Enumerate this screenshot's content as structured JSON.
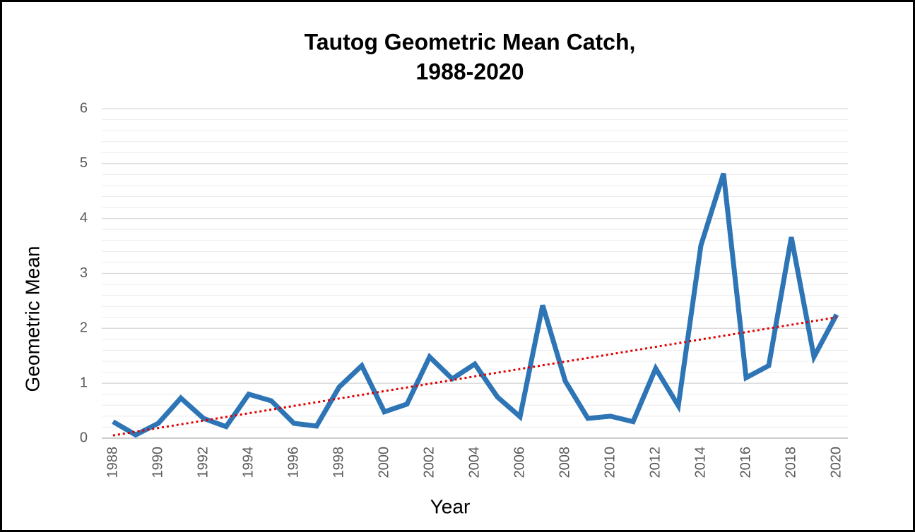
{
  "chart_data": {
    "type": "line",
    "title": [
      "Tautog Geometric Mean Catch,",
      "1988-2020"
    ],
    "x_label": "Year",
    "y_label": "Geometric Mean",
    "x": [
      1988,
      1989,
      1990,
      1991,
      1992,
      1993,
      1994,
      1995,
      1996,
      1997,
      1998,
      1999,
      2000,
      2001,
      2002,
      2003,
      2004,
      2005,
      2006,
      2007,
      2008,
      2009,
      2010,
      2011,
      2012,
      2013,
      2014,
      2015,
      2016,
      2017,
      2018,
      2019,
      2020
    ],
    "series": [
      {
        "color": "#2e75b6",
        "values": [
          0.3,
          0.06,
          0.27,
          0.73,
          0.36,
          0.21,
          0.8,
          0.68,
          0.27,
          0.22,
          0.93,
          1.32,
          0.48,
          0.62,
          1.48,
          1.08,
          1.35,
          0.75,
          0.39,
          2.42,
          1.04,
          0.36,
          0.4,
          0.3,
          1.27,
          0.59,
          3.51,
          4.82,
          1.1,
          1.32,
          3.66,
          1.48,
          2.25
        ]
      }
    ],
    "trendline": {
      "x": [
        1988,
        2020
      ],
      "values": [
        0.05,
        2.2
      ],
      "color": "#e00000"
    },
    "xlim": [
      1987.5,
      2020.5
    ],
    "xticks": [
      1988,
      1990,
      1992,
      1994,
      1996,
      1998,
      2000,
      2002,
      2004,
      2006,
      2008,
      2010,
      2012,
      2014,
      2016,
      2018,
      2020
    ],
    "ylim": [
      0,
      6
    ],
    "yticks": [
      0,
      1,
      2,
      3,
      4,
      5,
      6
    ],
    "grid": true,
    "y_minor_step": 0.2
  }
}
